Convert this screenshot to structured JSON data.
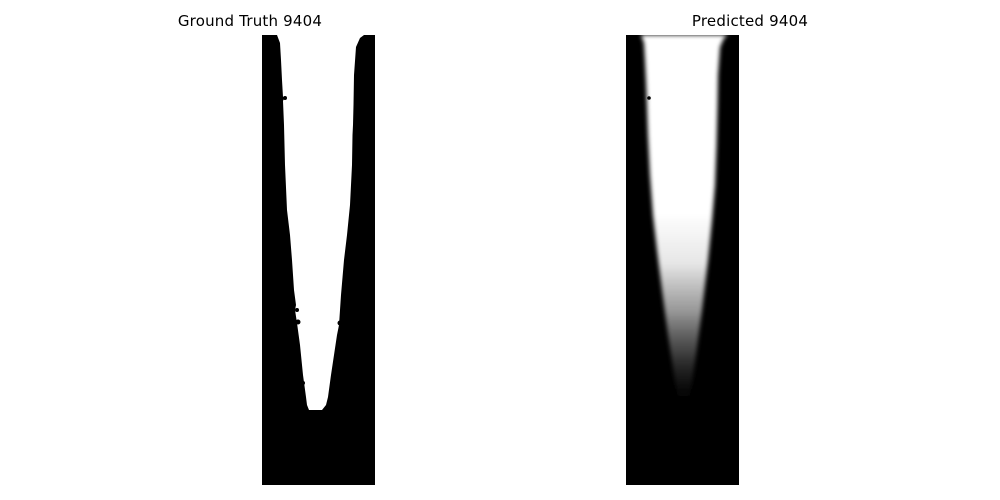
{
  "panels": [
    {
      "title": "Ground Truth 9404",
      "image_kind": "binary segmentation mask",
      "colors": {
        "background": "#000000",
        "region": "#ffffff"
      }
    },
    {
      "title": "Predicted 9404",
      "image_kind": "soft (grayscale) segmentation prediction",
      "colors": {
        "background": "#000000",
        "region": "#ffffff"
      }
    }
  ]
}
